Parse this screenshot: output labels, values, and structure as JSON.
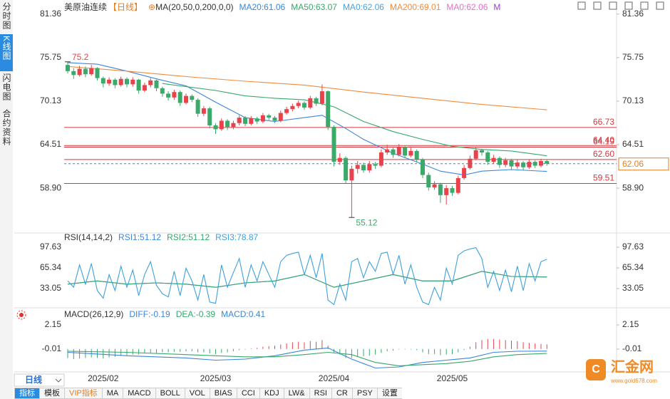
{
  "ui": {
    "tabs": [
      "分时图",
      "K线图",
      "闪电图",
      "合约资料"
    ],
    "period": "日线",
    "toolbar": [
      "指标",
      "模板",
      "VIP指标",
      "MA",
      "MACD",
      "BOLL",
      "VOL",
      "BIAS",
      "CCI",
      "KDJ",
      "LW&",
      "RSI",
      "CR",
      "PSY",
      "设置"
    ],
    "logo": {
      "name": "汇金网",
      "url": "www.gold678.com"
    }
  },
  "chart_data": [
    {
      "type": "candlestick",
      "title": "美原油连续",
      "period": "【日线】",
      "indicator": "MA(20,50,0,200,0,0)",
      "legend": [
        {
          "text": "MA20:61.06",
          "color": "#3a86d8"
        },
        {
          "text": "MA50:63.07",
          "color": "#35a86a"
        },
        {
          "text": "MA0:62.06",
          "color": "#4aa3df"
        },
        {
          "text": "MA200:69.01",
          "color": "#f08a3c"
        },
        {
          "text": "MA0:62.06",
          "color": "#e36fc8"
        },
        {
          "text": "M",
          "color": "#a040c0"
        }
      ],
      "up_color": "#e8424a",
      "down_color": "#3aa96a",
      "categories": [
        null,
        null,
        null,
        null,
        null,
        null,
        "2025/02",
        null,
        null,
        null,
        null,
        null,
        null,
        null,
        null,
        null,
        null,
        null,
        null,
        null,
        null,
        null,
        null,
        null,
        null,
        "2025/03",
        null,
        null,
        null,
        null,
        null,
        null,
        null,
        null,
        null,
        null,
        null,
        null,
        null,
        null,
        null,
        null,
        null,
        null,
        null,
        "2025/04",
        null,
        null,
        null,
        null,
        null,
        null,
        null,
        null,
        null,
        null,
        null,
        null,
        null,
        null,
        null,
        null,
        null,
        null,
        null,
        "2025/05",
        null,
        null,
        null,
        null,
        null,
        null,
        null,
        null,
        null,
        null,
        null,
        null,
        null,
        null,
        null,
        null
      ],
      "candles": [
        [
          74.8,
          75.2,
          73.7,
          74.0
        ],
        [
          74.0,
          74.4,
          73.0,
          73.5
        ],
        [
          73.5,
          74.7,
          73.3,
          74.3
        ],
        [
          74.3,
          74.6,
          73.2,
          73.6
        ],
        [
          73.6,
          74.8,
          73.4,
          74.4
        ],
        [
          74.4,
          74.5,
          72.8,
          73.1
        ],
        [
          73.1,
          73.3,
          71.9,
          72.4
        ],
        [
          72.4,
          73.2,
          72.1,
          72.9
        ],
        [
          72.9,
          73.1,
          71.8,
          72.2
        ],
        [
          72.2,
          73.3,
          72.0,
          73.0
        ],
        [
          73.0,
          73.2,
          71.9,
          72.3
        ],
        [
          72.3,
          73.2,
          72.0,
          72.9
        ],
        [
          72.9,
          73.0,
          71.1,
          71.5
        ],
        [
          71.5,
          72.5,
          71.3,
          72.2
        ],
        [
          72.2,
          73.1,
          71.9,
          72.8
        ],
        [
          72.8,
          72.9,
          71.4,
          71.8
        ],
        [
          71.8,
          72.0,
          70.7,
          71.1
        ],
        [
          71.1,
          71.4,
          70.2,
          70.6
        ],
        [
          70.6,
          71.6,
          70.3,
          71.3
        ],
        [
          71.3,
          71.5,
          69.5,
          69.9
        ],
        [
          69.9,
          71.1,
          69.7,
          70.8
        ],
        [
          70.8,
          71.0,
          70.0,
          70.3
        ],
        [
          70.3,
          70.5,
          68.1,
          68.5
        ],
        [
          68.5,
          69.5,
          68.2,
          69.2
        ],
        [
          69.2,
          69.4,
          66.6,
          67.0
        ],
        [
          67.0,
          67.3,
          65.9,
          66.5
        ],
        [
          66.5,
          67.9,
          66.3,
          67.6
        ],
        [
          67.6,
          67.8,
          66.4,
          66.8
        ],
        [
          66.8,
          67.6,
          66.5,
          67.3
        ],
        [
          67.3,
          68.3,
          67.0,
          68.0
        ],
        [
          68.0,
          68.2,
          66.9,
          67.2
        ],
        [
          67.2,
          68.2,
          67.0,
          67.9
        ],
        [
          67.9,
          68.1,
          67.2,
          67.5
        ],
        [
          67.5,
          68.6,
          67.3,
          68.3
        ],
        [
          68.3,
          68.5,
          67.7,
          68.0
        ],
        [
          68.0,
          68.2,
          67.3,
          67.6
        ],
        [
          67.6,
          68.9,
          67.4,
          68.6
        ],
        [
          68.6,
          69.4,
          68.4,
          69.1
        ],
        [
          69.1,
          69.8,
          68.8,
          69.5
        ],
        [
          69.5,
          70.2,
          69.2,
          69.9
        ],
        [
          69.9,
          70.1,
          69.0,
          69.3
        ],
        [
          69.3,
          70.8,
          69.1,
          70.5
        ],
        [
          70.5,
          70.7,
          69.5,
          69.8
        ],
        [
          69.8,
          72.28,
          69.6,
          71.4
        ],
        [
          71.4,
          71.5,
          66.4,
          66.8
        ],
        [
          66.8,
          67.0,
          61.7,
          62.3
        ],
        [
          62.3,
          63.4,
          61.9,
          62.8
        ],
        [
          62.8,
          63.0,
          59.5,
          59.9
        ],
        [
          59.9,
          61.8,
          55.12,
          61.4
        ],
        [
          61.4,
          62.4,
          60.8,
          61.9
        ],
        [
          61.9,
          62.2,
          60.9,
          61.2
        ],
        [
          61.2,
          62.4,
          60.9,
          62.0
        ],
        [
          62.0,
          62.3,
          61.4,
          61.8
        ],
        [
          61.8,
          63.9,
          61.6,
          63.5
        ],
        [
          63.5,
          64.5,
          63.2,
          63.9
        ],
        [
          63.9,
          64.1,
          62.8,
          63.2
        ],
        [
          63.2,
          64.6,
          63.0,
          64.2
        ],
        [
          64.2,
          64.4,
          62.8,
          63.1
        ],
        [
          63.1,
          64.1,
          62.9,
          63.7
        ],
        [
          63.7,
          63.9,
          62.2,
          62.6
        ],
        [
          62.6,
          62.8,
          60.2,
          60.6
        ],
        [
          60.6,
          60.9,
          58.6,
          59.0
        ],
        [
          59.0,
          59.8,
          58.7,
          59.4
        ],
        [
          59.4,
          59.6,
          57.0,
          58.0
        ],
        [
          58.0,
          59.3,
          56.8,
          58.9
        ],
        [
          58.9,
          59.2,
          57.9,
          58.3
        ],
        [
          58.3,
          60.5,
          58.1,
          60.2
        ],
        [
          60.2,
          61.9,
          60.0,
          61.5
        ],
        [
          61.5,
          63.1,
          61.3,
          62.7
        ],
        [
          62.7,
          64.2,
          62.5,
          63.8
        ],
        [
          63.8,
          64.0,
          63.1,
          63.5
        ],
        [
          63.5,
          63.7,
          61.9,
          62.3
        ],
        [
          62.3,
          63.2,
          62.0,
          62.8
        ],
        [
          62.8,
          63.0,
          61.5,
          61.9
        ],
        [
          61.9,
          62.8,
          61.6,
          62.5
        ],
        [
          62.5,
          62.7,
          61.3,
          61.7
        ],
        [
          61.7,
          62.6,
          61.4,
          62.2
        ],
        [
          62.2,
          62.4,
          61.2,
          61.6
        ],
        [
          61.6,
          62.6,
          61.4,
          62.3
        ],
        [
          62.3,
          62.5,
          61.5,
          61.8
        ],
        [
          61.8,
          62.7,
          61.6,
          62.4
        ],
        [
          62.4,
          62.6,
          61.8,
          62.06
        ]
      ],
      "series": [
        {
          "color": "#3a86d8",
          "x": [
            0,
            5,
            10,
            15,
            20,
            25,
            30,
            35,
            40,
            43,
            47,
            50,
            55,
            60,
            63,
            67,
            70,
            75,
            81
          ],
          "values": [
            75.1,
            74.9,
            74.0,
            73.0,
            72.1,
            70.0,
            68.0,
            67.5,
            68.0,
            68.3,
            66.6,
            65.2,
            63.4,
            62.0,
            61.1,
            60.6,
            61.1,
            61.3,
            61.06
          ]
        },
        {
          "color": "#35a86a",
          "x": [
            16,
            20,
            25,
            30,
            35,
            40,
            45,
            50,
            55,
            60,
            65,
            70,
            75,
            81
          ],
          "values": [
            72.4,
            72.0,
            71.5,
            70.8,
            70.5,
            70.3,
            69.4,
            67.5,
            66.2,
            65.2,
            64.3,
            63.9,
            63.7,
            63.07
          ]
        },
        {
          "color": "#f08a3c",
          "x": [
            0,
            10,
            20,
            30,
            40,
            50,
            60,
            70,
            81
          ],
          "values": [
            74.6,
            74.0,
            73.3,
            72.7,
            72.2,
            71.3,
            70.5,
            69.7,
            69.01
          ]
        }
      ],
      "levels": [
        66.73,
        {
          "value": 64.4,
          "label": "64.40"
        },
        64.19,
        {
          "value": 62.6,
          "label": "62.60"
        },
        59.51
      ],
      "level_color": "#d9363e",
      "last_price_line": true,
      "last_color": "#e67e22",
      "extremes": true,
      "ylim": [
        53.3,
        81.8
      ],
      "yticks": [
        81.36,
        75.75,
        70.13,
        64.51,
        {
          "value": 58.9,
          "label": "58.90"
        }
      ]
    },
    {
      "type": "line",
      "title": "RSI(14,14,2)",
      "series": [
        {
          "name": "RSI1:51.12",
          "color": "#3a86d8",
          "x": [
            0,
            5,
            10,
            15,
            20,
            25,
            30,
            35,
            40,
            45,
            50,
            55,
            60,
            65,
            70,
            75,
            81
          ],
          "values": [
            40,
            45,
            40,
            42,
            40,
            35,
            42,
            45,
            55,
            35,
            45,
            55,
            45,
            45,
            60,
            52,
            51.12
          ]
        },
        {
          "name": "RSI2:51.12",
          "color": "#35a86a",
          "x": [
            0,
            5,
            10,
            15,
            20,
            25,
            30,
            35,
            40,
            45,
            50,
            55,
            60,
            65,
            70,
            75,
            81
          ],
          "values": [
            40,
            45,
            40,
            42,
            40,
            35,
            42,
            45,
            55,
            35,
            45,
            55,
            45,
            45,
            60,
            52,
            51.12
          ]
        },
        {
          "name": "RSI3:78.87",
          "color": "#3ea0dc",
          "values": [
            45,
            35,
            70,
            40,
            72,
            30,
            18,
            55,
            30,
            68,
            35,
            62,
            22,
            55,
            75,
            38,
            25,
            20,
            60,
            22,
            65,
            45,
            15,
            55,
            12,
            10,
            70,
            35,
            58,
            80,
            35,
            70,
            45,
            75,
            55,
            35,
            75,
            85,
            88,
            90,
            55,
            85,
            50,
            88,
            15,
            8,
            40,
            15,
            75,
            80,
            50,
            75,
            60,
            88,
            90,
            55,
            85,
            40,
            70,
            35,
            12,
            8,
            35,
            15,
            65,
            40,
            85,
            92,
            95,
            97,
            80,
            35,
            60,
            30,
            62,
            28,
            68,
            30,
            72,
            45,
            75,
            78.87
          ]
        }
      ],
      "ylim": [
        5.2,
        111
      ],
      "yticks": [
        97.63,
        65.34,
        33.05
      ]
    },
    {
      "type": "macd",
      "title": "MACD(26,12,9)",
      "up_color": "#e8424a",
      "down_color": "#3aa96a",
      "bars": {
        "name": "MACD:0.41",
        "color": "#3a86d8",
        "values": [
          -0.8,
          -0.9,
          -0.85,
          -0.8,
          -0.75,
          -0.8,
          -0.85,
          -0.75,
          -0.7,
          -0.6,
          -0.55,
          -0.5,
          -0.5,
          -0.4,
          -0.35,
          -0.35,
          -0.3,
          -0.3,
          -0.25,
          -0.25,
          -0.2,
          -0.2,
          -0.3,
          -0.3,
          -0.4,
          -0.45,
          -0.35,
          -0.3,
          -0.2,
          -0.1,
          -0.05,
          0.05,
          0.1,
          0.2,
          0.25,
          0.3,
          0.4,
          0.5,
          0.6,
          0.65,
          0.6,
          0.7,
          0.65,
          0.8,
          0.3,
          -0.3,
          -0.5,
          -0.8,
          -0.8,
          -0.7,
          -0.65,
          -0.6,
          -0.5,
          -0.35,
          -0.2,
          -0.15,
          -0.05,
          -0.05,
          -0.05,
          -0.1,
          -0.3,
          -0.45,
          -0.45,
          -0.55,
          -0.5,
          -0.45,
          -0.3,
          -0.1,
          0.2,
          0.6,
          0.8,
          0.9,
          0.9,
          0.85,
          0.8,
          0.75,
          0.7,
          0.6,
          0.55,
          0.5,
          0.45,
          0.41
        ]
      },
      "series": [
        {
          "name": "DIFF:-0.19",
          "color": "#3a86d8",
          "x": [
            0,
            10,
            20,
            25,
            30,
            35,
            40,
            44,
            48,
            52,
            56,
            60,
            64,
            68,
            72,
            76,
            81
          ],
          "values": [
            -0.3,
            -0.6,
            -0.8,
            -1.0,
            -0.9,
            -0.6,
            -0.1,
            0.1,
            -0.9,
            -1.7,
            -1.6,
            -1.2,
            -1.0,
            -0.8,
            -0.3,
            -0.2,
            -0.19
          ]
        },
        {
          "name": "DEA:-0.39",
          "color": "#35a86a",
          "x": [
            0,
            10,
            20,
            25,
            30,
            35,
            40,
            44,
            48,
            52,
            56,
            60,
            64,
            68,
            72,
            76,
            81
          ],
          "values": [
            -0.2,
            -0.3,
            -0.5,
            -0.6,
            -0.7,
            -0.7,
            -0.5,
            -0.3,
            -0.5,
            -1.2,
            -1.5,
            -1.4,
            -1.3,
            -1.1,
            -0.7,
            -0.5,
            -0.39
          ]
        }
      ],
      "ylim": [
        -1.92,
        3.17
      ],
      "yticks": [
        2.15,
        {
          "value": -0.01,
          "label": "-0.01"
        }
      ]
    }
  ]
}
